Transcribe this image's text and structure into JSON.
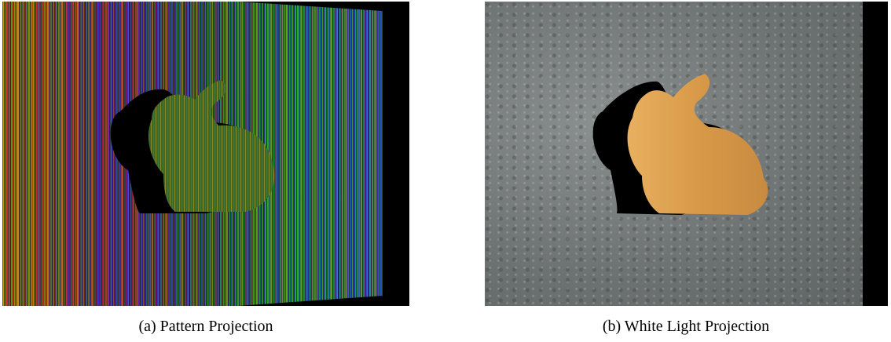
{
  "figure": {
    "panels": [
      {
        "caption": "(a) Pattern Projection"
      },
      {
        "caption": "(b) White Light Projection"
      }
    ]
  }
}
